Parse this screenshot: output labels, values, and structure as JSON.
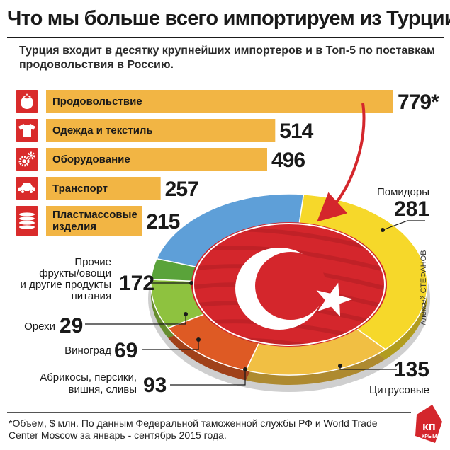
{
  "title": "Что мы больше всего импортируем из Турции",
  "subtitle": "Турция входит в десятку крупнейших импортеров и в Топ-5 по поставкам продовольствия в Россию.",
  "footnote": "*Объем, $ млн. По данным Федеральной таможенной службы РФ и World Trade Center Moscow за январь - сентябрь 2015 года.",
  "credit": "Алексей СТЕФАНОВ",
  "logo_text": "кп",
  "logo_subtext": "КРЫМ",
  "colors": {
    "bar": "#f2b544",
    "icon": "#d92b2b",
    "flag_red": "#d4262c",
    "tomatoes": "#f6d82a",
    "citrus": "#f1bf43",
    "apricots": "#de5a24",
    "grapes": "#8ec23f",
    "nuts": "#5aa33a",
    "other": "#5e9fd8"
  },
  "chart_data": [
    {
      "type": "bar",
      "orientation": "horizontal",
      "categories": [
        "Продовольствие",
        "Одежда и текстиль",
        "Оборудование",
        "Транспорт",
        "Пластмассовые изделия"
      ],
      "values": [
        779,
        514,
        496,
        257,
        215
      ],
      "value_labels": [
        "779*",
        "514",
        "496",
        "257",
        "215"
      ],
      "icons": [
        "tomato-icon",
        "tshirt-icon",
        "gears-icon",
        "car-icon",
        "plastic-stack-icon"
      ]
    },
    {
      "type": "pie",
      "style": "donut",
      "categories": [
        "Помидоры",
        "Цитрусовые",
        "Абрикосы, персики, вишня, сливы",
        "Виноград",
        "Орехи",
        "Прочие фрукты/овощи и другие продукты питания"
      ],
      "values": [
        281,
        135,
        93,
        69,
        29,
        172
      ]
    }
  ]
}
